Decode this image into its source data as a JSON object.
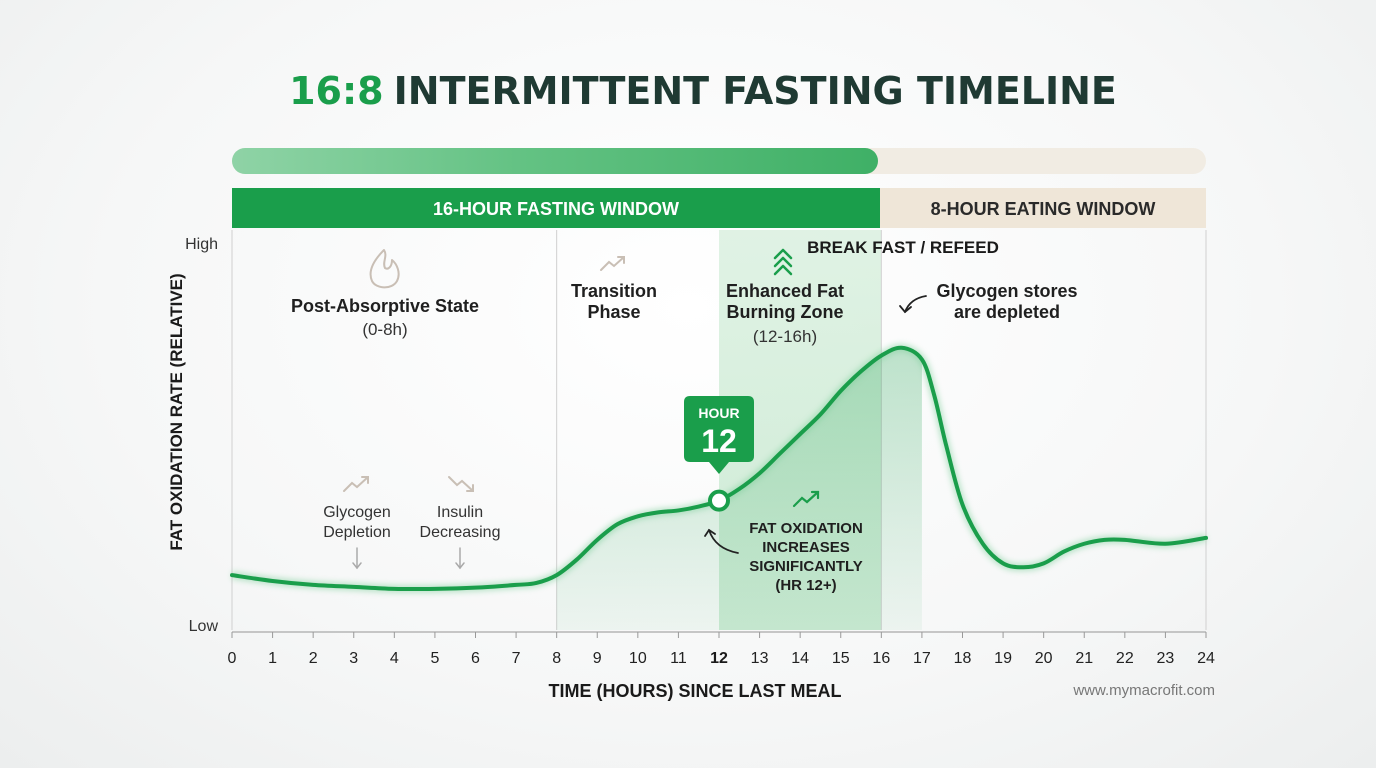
{
  "title": {
    "highlight": "16:8",
    "rest": "INTERMITTENT FASTING TIMELINE"
  },
  "colors": {
    "accent": "#1a9e4b",
    "accent_light": "#7fcf9b",
    "dark_text": "#1f3a33",
    "eating": "#efe6d8"
  },
  "windows": {
    "fasting": "16-HOUR FASTING WINDOW",
    "eating": "8-HOUR EATING WINDOW"
  },
  "break_fast": "BREAK FAST / REFEED",
  "phases": {
    "post_absorptive": {
      "title": "Post-Absorptive State",
      "range": "(0-8h)",
      "icon": "flame-icon"
    },
    "transition": {
      "line1": "Transition",
      "line2": "Phase",
      "icon": "trend-up-icon"
    },
    "enhanced": {
      "line1": "Enhanced Fat",
      "line2": "Burning Zone",
      "range": "(12-16h)",
      "icon": "double-chevron-up-icon"
    }
  },
  "notes": {
    "glycogen_depletion": {
      "line1": "Glycogen",
      "line2": "Depletion"
    },
    "insulin_decreasing": {
      "line1": "Insulin",
      "line2": "Decreasing"
    },
    "glycogen_depleted": {
      "line1": "Glycogen stores",
      "line2": "are depleted"
    },
    "fat_oxidation": {
      "line1": "FAT OXIDATION",
      "line2": "INCREASES",
      "line3": "SIGNIFICANTLY",
      "line4": "(HR 12+)"
    }
  },
  "marker": {
    "label": "HOUR",
    "value": "12"
  },
  "website": "www.mymacrofit.com",
  "chart_data": {
    "type": "line",
    "title": "16:8 INTERMITTENT FASTING TIMELINE",
    "xlabel": "TIME (HOURS) SINCE LAST MEAL",
    "ylabel": "FAT OXIDATION RATE (RELATIVE)",
    "y_tick_labels": [
      "Low",
      "High"
    ],
    "xlim": [
      0,
      24
    ],
    "ylim": [
      0,
      1
    ],
    "x_ticks": [
      0,
      1,
      2,
      3,
      4,
      5,
      6,
      7,
      8,
      9,
      10,
      11,
      12,
      13,
      14,
      15,
      16,
      17,
      18,
      19,
      20,
      21,
      22,
      23,
      24
    ],
    "highlight_tick": 12,
    "grid": false,
    "shaded_range": [
      12,
      16
    ],
    "series": [
      {
        "x": [
          0,
          1,
          2,
          3,
          4,
          5,
          6,
          7,
          7.5,
          8,
          8.5,
          9,
          9.5,
          10,
          10.5,
          11,
          11.5,
          12,
          12.5,
          13,
          13.5,
          14,
          14.5,
          15,
          15.5,
          16,
          16.5,
          17,
          17.3,
          17.6,
          18,
          18.5,
          19,
          19.5,
          20,
          20.5,
          21,
          21.5,
          22,
          23,
          24
        ],
        "values": [
          0.14,
          0.125,
          0.115,
          0.11,
          0.105,
          0.105,
          0.108,
          0.115,
          0.12,
          0.14,
          0.18,
          0.23,
          0.27,
          0.29,
          0.3,
          0.305,
          0.315,
          0.33,
          0.36,
          0.4,
          0.45,
          0.5,
          0.55,
          0.61,
          0.66,
          0.7,
          0.72,
          0.69,
          0.6,
          0.47,
          0.32,
          0.22,
          0.17,
          0.16,
          0.17,
          0.2,
          0.22,
          0.23,
          0.23,
          0.22,
          0.235
        ]
      }
    ]
  }
}
